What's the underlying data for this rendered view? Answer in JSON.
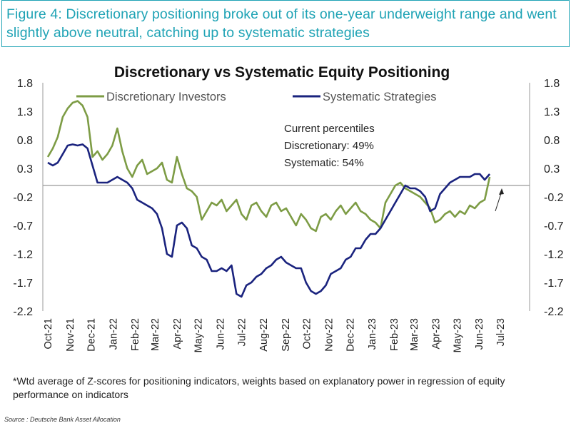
{
  "figure": {
    "title": "Figure 4: Discretionary positioning broke out of its one-year underweight range and went slightly above neutral, catching up to systematic strategies",
    "footnote": "*Wtd average of Z-scores for positioning indicators, weights based on explanatory power in regression of equity performance on indicators",
    "source": "Source : Deutsche Bank Asset Allocation"
  },
  "colors": {
    "title": "#1fa3b5",
    "discretionary": "#7d9c45",
    "systematic": "#1a237e",
    "zero_line": "#999999"
  },
  "chart_data": {
    "type": "line",
    "title": "Discretionary  vs Systematic Equity Positioning",
    "xlabel": "",
    "ylabel": "",
    "ylim": [
      -2.2,
      1.8
    ],
    "yticks": [
      "1.8",
      "1.3",
      "0.8",
      "0.3",
      "-0.2",
      "-0.7",
      "-1.2",
      "-1.7",
      "-2.2"
    ],
    "right_axis": true,
    "grid": false,
    "legend_position": "top",
    "x_tick_labels": [
      "Oct-21",
      "Nov-21",
      "Dec-21",
      "Jan-22",
      "Feb-22",
      "Mar-22",
      "Apr-22",
      "May-22",
      "Jun-22",
      "Jul-22",
      "Aug-22",
      "Sep-22",
      "Oct-22",
      "Nov-22",
      "Dec-22",
      "Jan-23",
      "Feb-23",
      "Mar-23",
      "Apr-23",
      "May-23",
      "Jun-23",
      "Jul-23"
    ],
    "annotation": {
      "lines": [
        "Current percentiles",
        "Discretionary: 49%",
        "Systematic: 54%"
      ]
    },
    "series": [
      {
        "name": "Discretionary Investors",
        "color": "#7d9c45",
        "x": [
          "2021-10-01",
          "2021-10-08",
          "2021-10-15",
          "2021-10-22",
          "2021-10-29",
          "2021-11-05",
          "2021-11-12",
          "2021-11-19",
          "2021-11-26",
          "2021-12-03",
          "2021-12-10",
          "2021-12-17",
          "2021-12-24",
          "2021-12-31",
          "2022-01-07",
          "2022-01-14",
          "2022-01-21",
          "2022-01-28",
          "2022-02-04",
          "2022-02-11",
          "2022-02-18",
          "2022-02-25",
          "2022-03-04",
          "2022-03-11",
          "2022-03-18",
          "2022-03-25",
          "2022-04-01",
          "2022-04-08",
          "2022-04-15",
          "2022-04-22",
          "2022-04-29",
          "2022-05-06",
          "2022-05-13",
          "2022-05-20",
          "2022-05-27",
          "2022-06-03",
          "2022-06-10",
          "2022-06-17",
          "2022-06-24",
          "2022-07-01",
          "2022-07-08",
          "2022-07-15",
          "2022-07-22",
          "2022-07-29",
          "2022-08-05",
          "2022-08-12",
          "2022-08-19",
          "2022-08-26",
          "2022-09-02",
          "2022-09-09",
          "2022-09-16",
          "2022-09-23",
          "2022-09-30",
          "2022-10-07",
          "2022-10-14",
          "2022-10-21",
          "2022-10-28",
          "2022-11-04",
          "2022-11-11",
          "2022-11-18",
          "2022-11-25",
          "2022-12-02",
          "2022-12-09",
          "2022-12-16",
          "2022-12-23",
          "2022-12-30",
          "2023-01-06",
          "2023-01-13",
          "2023-01-20",
          "2023-01-27",
          "2023-02-03",
          "2023-02-10",
          "2023-02-17",
          "2023-02-24",
          "2023-03-03",
          "2023-03-10",
          "2023-03-17",
          "2023-03-24",
          "2023-03-31",
          "2023-04-07",
          "2023-04-14",
          "2023-04-21",
          "2023-04-28",
          "2023-05-05",
          "2023-05-12",
          "2023-05-19",
          "2023-05-26",
          "2023-06-02",
          "2023-06-09",
          "2023-06-16"
        ],
        "values": [
          0.5,
          0.65,
          0.85,
          1.2,
          1.35,
          1.45,
          1.48,
          1.4,
          1.2,
          0.5,
          0.6,
          0.45,
          0.55,
          0.7,
          1.0,
          0.6,
          0.3,
          0.15,
          0.35,
          0.45,
          0.2,
          0.25,
          0.3,
          0.4,
          0.1,
          0.05,
          0.5,
          0.2,
          -0.05,
          -0.1,
          -0.2,
          -0.6,
          -0.45,
          -0.3,
          -0.35,
          -0.25,
          -0.45,
          -0.35,
          -0.25,
          -0.5,
          -0.6,
          -0.35,
          -0.3,
          -0.45,
          -0.55,
          -0.35,
          -0.3,
          -0.45,
          -0.4,
          -0.55,
          -0.7,
          -0.5,
          -0.6,
          -0.75,
          -0.8,
          -0.55,
          -0.5,
          -0.6,
          -0.45,
          -0.35,
          -0.5,
          -0.4,
          -0.3,
          -0.45,
          -0.5,
          -0.6,
          -0.65,
          -0.75,
          -0.3,
          -0.15,
          0.0,
          0.05,
          -0.05,
          -0.1,
          -0.15,
          -0.2,
          -0.3,
          -0.4,
          -0.65,
          -0.6,
          -0.5,
          -0.45,
          -0.55,
          -0.45,
          -0.5,
          -0.35,
          -0.4,
          -0.3,
          -0.25,
          0.15
        ]
      },
      {
        "name": "Systematic Strategies",
        "color": "#1a237e",
        "x": [
          "2021-10-01",
          "2021-10-08",
          "2021-10-15",
          "2021-10-22",
          "2021-10-29",
          "2021-11-05",
          "2021-11-12",
          "2021-11-19",
          "2021-11-26",
          "2021-12-03",
          "2021-12-10",
          "2021-12-17",
          "2021-12-24",
          "2021-12-31",
          "2022-01-07",
          "2022-01-14",
          "2022-01-21",
          "2022-01-28",
          "2022-02-04",
          "2022-02-11",
          "2022-02-18",
          "2022-02-25",
          "2022-03-04",
          "2022-03-11",
          "2022-03-18",
          "2022-03-25",
          "2022-04-01",
          "2022-04-08",
          "2022-04-15",
          "2022-04-22",
          "2022-04-29",
          "2022-05-06",
          "2022-05-13",
          "2022-05-20",
          "2022-05-27",
          "2022-06-03",
          "2022-06-10",
          "2022-06-17",
          "2022-06-24",
          "2022-07-01",
          "2022-07-08",
          "2022-07-15",
          "2022-07-22",
          "2022-07-29",
          "2022-08-05",
          "2022-08-12",
          "2022-08-19",
          "2022-08-26",
          "2022-09-02",
          "2022-09-09",
          "2022-09-16",
          "2022-09-23",
          "2022-09-30",
          "2022-10-07",
          "2022-10-14",
          "2022-10-21",
          "2022-10-28",
          "2022-11-04",
          "2022-11-11",
          "2022-11-18",
          "2022-11-25",
          "2022-12-02",
          "2022-12-09",
          "2022-12-16",
          "2022-12-23",
          "2022-12-30",
          "2023-01-06",
          "2023-01-13",
          "2023-01-20",
          "2023-01-27",
          "2023-02-03",
          "2023-02-10",
          "2023-02-17",
          "2023-02-24",
          "2023-03-03",
          "2023-03-10",
          "2023-03-17",
          "2023-03-24",
          "2023-03-31",
          "2023-04-07",
          "2023-04-14",
          "2023-04-21",
          "2023-04-28",
          "2023-05-05",
          "2023-05-12",
          "2023-05-19",
          "2023-05-26",
          "2023-06-02",
          "2023-06-09",
          "2023-06-16"
        ],
        "values": [
          0.4,
          0.35,
          0.4,
          0.55,
          0.7,
          0.72,
          0.7,
          0.72,
          0.65,
          0.35,
          0.05,
          0.05,
          0.05,
          0.1,
          0.15,
          0.1,
          0.05,
          -0.05,
          -0.25,
          -0.3,
          -0.35,
          -0.4,
          -0.5,
          -0.75,
          -1.2,
          -1.25,
          -0.7,
          -0.65,
          -0.75,
          -1.05,
          -1.1,
          -1.25,
          -1.3,
          -1.5,
          -1.5,
          -1.45,
          -1.5,
          -1.4,
          -1.9,
          -1.95,
          -1.75,
          -1.7,
          -1.6,
          -1.55,
          -1.45,
          -1.4,
          -1.3,
          -1.25,
          -1.35,
          -1.4,
          -1.45,
          -1.45,
          -1.7,
          -1.85,
          -1.9,
          -1.85,
          -1.75,
          -1.55,
          -1.5,
          -1.45,
          -1.3,
          -1.25,
          -1.1,
          -1.1,
          -0.95,
          -0.85,
          -0.85,
          -0.75,
          -0.6,
          -0.45,
          -0.3,
          -0.15,
          0.0,
          -0.05,
          -0.05,
          -0.1,
          -0.2,
          -0.45,
          -0.4,
          -0.15,
          -0.05,
          0.05,
          0.1,
          0.15,
          0.15,
          0.15,
          0.2,
          0.2,
          0.1,
          0.2
        ]
      }
    ]
  }
}
